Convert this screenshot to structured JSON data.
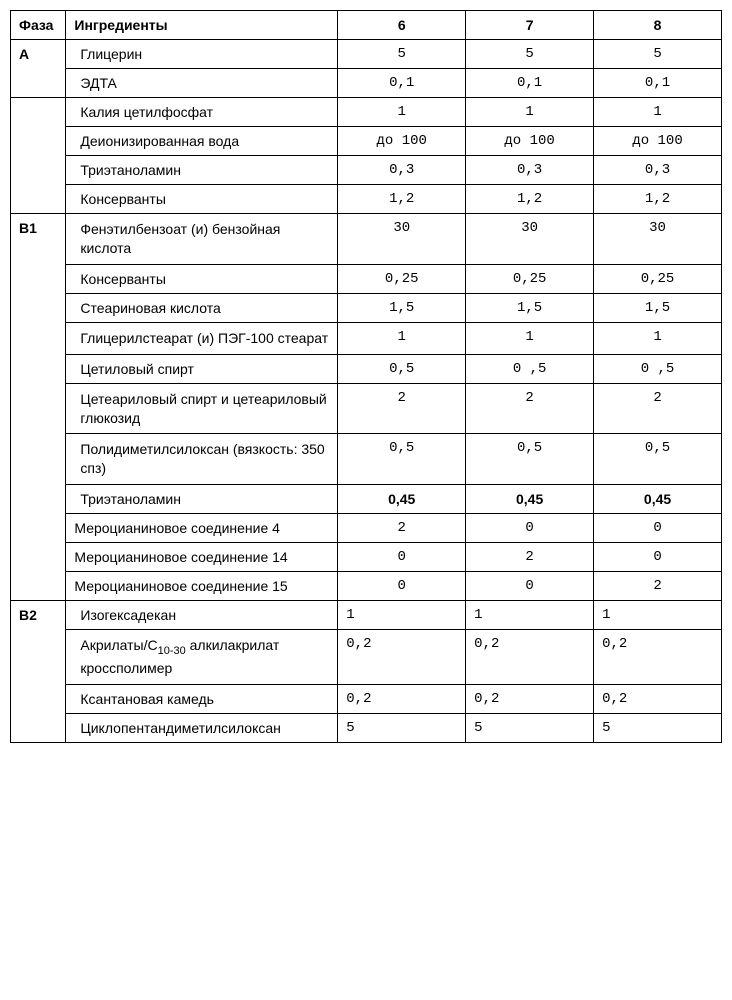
{
  "columns": {
    "phase": "Фаза",
    "ingredient": "Ингредиенты",
    "col6": "6",
    "col7": "7",
    "col8": "8"
  },
  "groups": [
    {
      "phase": "A",
      "rows": [
        {
          "ing": "Глицерин",
          "v6": "5",
          "v7": "5",
          "v8": "5"
        },
        {
          "ing": "ЭДТА",
          "v6": "0,1",
          "v7": "0,1",
          "v8": "0,1"
        }
      ]
    },
    {
      "phase": "",
      "rows": [
        {
          "ing": "Калия цетилфосфат",
          "v6": "1",
          "v7": "1",
          "v8": "1"
        },
        {
          "ing": "Деионизированная вода",
          "v6": "до 100",
          "v7": "до 100",
          "v8": "до 100"
        },
        {
          "ing": "Триэтаноламин",
          "v6": "0,3",
          "v7": "0,3",
          "v8": "0,3"
        },
        {
          "ing": "Консерванты",
          "v6": "1,2",
          "v7": "1,2",
          "v8": "1,2"
        }
      ]
    },
    {
      "phase": "B1",
      "rows": [
        {
          "ing": "Фенэтилбензоат (и) бензойная кислота",
          "v6": "30",
          "v7": "30",
          "v8": "30",
          "multiline": true
        },
        {
          "ing": "Консерванты",
          "v6": "0,25",
          "v7": "0,25",
          "v8": "0,25"
        },
        {
          "ing": "Стеариновая кислота",
          "v6": "1,5",
          "v7": "1,5",
          "v8": "1,5"
        },
        {
          "ing": "Глицерилстеарат (и) ПЭГ-100 стеарат",
          "v6": "1",
          "v7": "1",
          "v8": "1",
          "multiline": true
        },
        {
          "ing": "Цетиловый спирт",
          "v6": "0,5",
          "v7": "0 ,5",
          "v8": "0 ,5"
        },
        {
          "ing": "Цетеариловый спирт и цетеариловый глюкозид",
          "v6": "2",
          "v7": "2",
          "v8": "2",
          "multiline": true
        },
        {
          "ing": "Полидиметилсилоксан (вязкость: 350 спз)",
          "v6": "0,5",
          "v7": "0,5",
          "v8": "0,5",
          "multiline": true
        },
        {
          "ing": "Триэтаноламин",
          "v6": "0,45",
          "v7": "0,45",
          "v8": "0,45",
          "bold": true
        },
        {
          "ing": "Мероцианиновое соединение 4",
          "v6": "2",
          "v7": "0",
          "v8": "0",
          "noindent": true
        },
        {
          "ing": "Мероцианиновое соединение 14",
          "v6": "0",
          "v7": "2",
          "v8": "0",
          "noindent": true
        },
        {
          "ing": "Мероцианиновое соединение 15",
          "v6": "0",
          "v7": "0",
          "v8": "2",
          "noindent": true
        }
      ]
    },
    {
      "phase": "B2",
      "rows": [
        {
          "ing": "Изогексадекан",
          "v6": "1",
          "v7": "1",
          "v8": "1",
          "left": true
        },
        {
          "ing_html": "Акрилаты/С<span class=\"sub\">10-30</span> алкилакрилат кроссполимер",
          "v6": "0,2",
          "v7": "0,2",
          "v8": "0,2",
          "multiline": true,
          "left": true
        },
        {
          "ing": "Ксантановая камедь",
          "v6": "0,2",
          "v7": "0,2",
          "v8": "0,2",
          "left": true
        },
        {
          "ing": "Циклопентандиметилсилоксан",
          "v6": "5",
          "v7": "5",
          "v8": "5",
          "left": true
        }
      ]
    }
  ]
}
